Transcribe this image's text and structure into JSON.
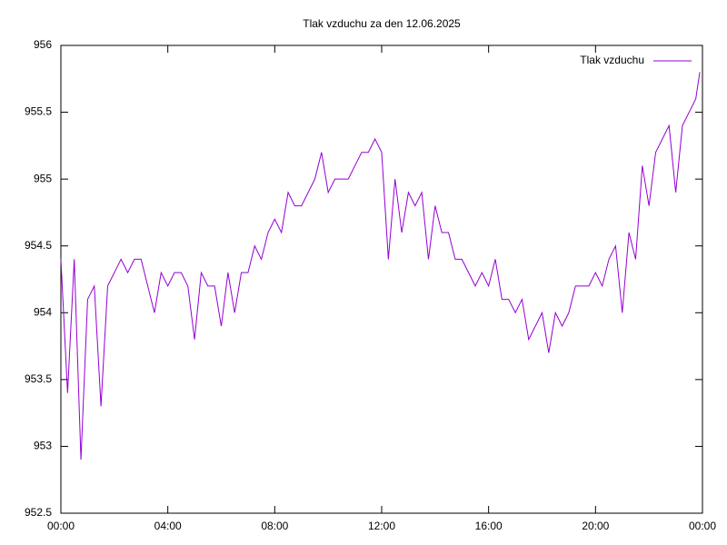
{
  "chart_data": {
    "type": "line",
    "title": "Tlak vzduchu za den 12.06.2025",
    "x": [
      0,
      0.25,
      0.5,
      0.75,
      1,
      1.25,
      1.5,
      1.75,
      2,
      2.25,
      2.5,
      2.75,
      3,
      3.25,
      3.5,
      3.75,
      4,
      4.25,
      4.5,
      4.75,
      5,
      5.25,
      5.5,
      5.75,
      6,
      6.25,
      6.5,
      6.75,
      7,
      7.25,
      7.5,
      7.75,
      8,
      8.25,
      8.5,
      8.75,
      9,
      9.25,
      9.5,
      9.75,
      10,
      10.25,
      10.5,
      10.75,
      11,
      11.25,
      11.5,
      11.75,
      12,
      12.25,
      12.5,
      12.75,
      13,
      13.25,
      13.5,
      13.75,
      14,
      14.25,
      14.5,
      14.75,
      15,
      15.25,
      15.5,
      15.75,
      16,
      16.25,
      16.5,
      16.75,
      17,
      17.25,
      17.5,
      17.75,
      18,
      18.25,
      18.5,
      18.75,
      19,
      19.25,
      19.5,
      19.75,
      20,
      20.25,
      20.5,
      20.75,
      21,
      21.25,
      21.5,
      21.75,
      22,
      22.25,
      22.5,
      22.75,
      23,
      23.25,
      23.5,
      23.75,
      23.9
    ],
    "series": [
      {
        "name": "Tlak vzduchu",
        "color": "#9400d3",
        "values": [
          954.4,
          953.4,
          954.4,
          952.9,
          954.1,
          954.2,
          953.3,
          954.2,
          954.3,
          954.4,
          954.3,
          954.4,
          954.4,
          954.2,
          954.0,
          954.3,
          954.2,
          954.3,
          954.3,
          954.2,
          953.8,
          954.3,
          954.2,
          954.2,
          953.9,
          954.3,
          954.0,
          954.3,
          954.3,
          954.5,
          954.4,
          954.6,
          954.7,
          954.6,
          954.9,
          954.8,
          954.8,
          954.9,
          955.0,
          955.2,
          954.9,
          955.0,
          955.0,
          955.0,
          955.1,
          955.2,
          955.2,
          955.3,
          955.2,
          954.4,
          955.0,
          954.6,
          954.9,
          954.8,
          954.9,
          954.4,
          954.8,
          954.6,
          954.6,
          954.4,
          954.4,
          954.3,
          954.2,
          954.3,
          954.2,
          954.4,
          954.1,
          954.1,
          954.0,
          954.1,
          953.8,
          953.9,
          954.0,
          953.7,
          954.0,
          953.9,
          954.0,
          954.2,
          954.2,
          954.2,
          954.3,
          954.2,
          954.4,
          954.5,
          954.0,
          954.6,
          954.4,
          955.1,
          954.8,
          955.2,
          955.3,
          955.4,
          954.9,
          955.4,
          955.5,
          955.6,
          955.8
        ]
      }
    ],
    "xlim": [
      0,
      24
    ],
    "xticks": [
      {
        "value": 0,
        "label": "00:00"
      },
      {
        "value": 4,
        "label": "04:00"
      },
      {
        "value": 8,
        "label": "08:00"
      },
      {
        "value": 12,
        "label": "12:00"
      },
      {
        "value": 16,
        "label": "16:00"
      },
      {
        "value": 20,
        "label": "20:00"
      },
      {
        "value": 24,
        "label": "00:00"
      }
    ],
    "ylim": [
      952.5,
      956
    ],
    "yticks": [
      952.5,
      953,
      953.5,
      954,
      954.5,
      955,
      955.5,
      956
    ],
    "legend": "top-right"
  }
}
